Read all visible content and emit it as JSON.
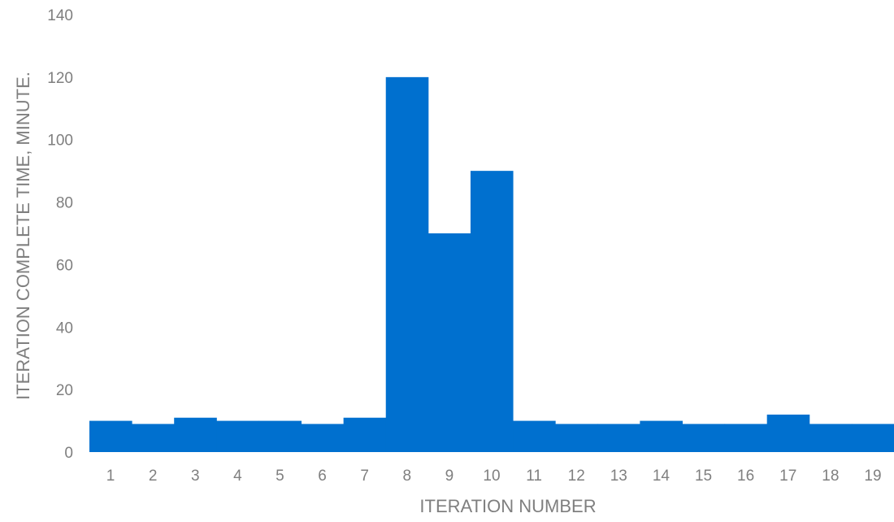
{
  "chart_data": {
    "type": "bar",
    "title": "",
    "xlabel": "ITERATION NUMBER",
    "ylabel": "ITERATION COMPLETE TIME, MINUTE.",
    "categories": [
      "1",
      "2",
      "3",
      "4",
      "5",
      "6",
      "7",
      "8",
      "9",
      "10",
      "11",
      "12",
      "13",
      "14",
      "15",
      "16",
      "17",
      "18",
      "19"
    ],
    "values": [
      10,
      9,
      11,
      10,
      10,
      9,
      11,
      120,
      70,
      90,
      10,
      9,
      9,
      10,
      9,
      9,
      12,
      9,
      9
    ],
    "ylim": [
      0,
      140
    ],
    "yticks": [
      0,
      20,
      40,
      60,
      80,
      100,
      120,
      140
    ],
    "grid": false,
    "legend": "none",
    "bar_color": "#0070CF",
    "text_color": "#7F7F7F"
  }
}
